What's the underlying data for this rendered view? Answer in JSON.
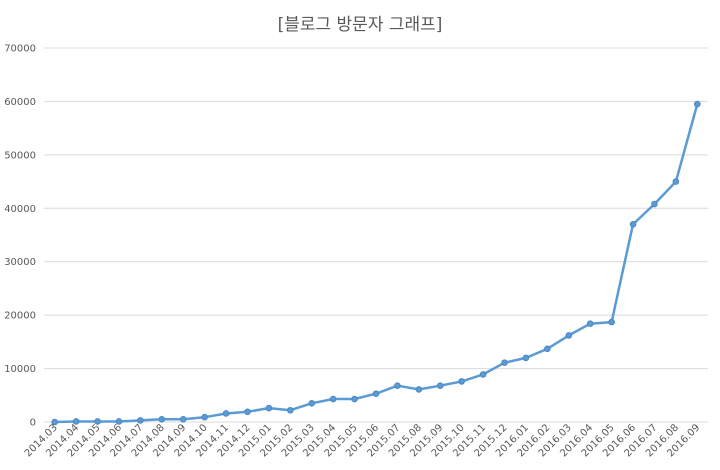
{
  "chart_data": {
    "type": "line",
    "title": "[블로그 방문자 그래프]",
    "xlabel": "",
    "ylabel": "",
    "ylim": [
      0,
      70000
    ],
    "yticks": [
      "0",
      "10000",
      "20000",
      "30000",
      "40000",
      "50000",
      "60000",
      "70000"
    ],
    "grid": true,
    "legend": "none",
    "colors": {
      "series": "#5b9bd5",
      "grid": "#d9d9d9",
      "text": "#595959"
    },
    "categories": [
      "2014.03",
      "2014.04",
      "2014.05",
      "2014.06",
      "2014.07",
      "2014.08",
      "2014.09",
      "2014.10",
      "2014.11",
      "2014.12",
      "2015.01",
      "2015.02",
      "2015.03",
      "2015.04",
      "2015.05",
      "2015.06",
      "2015.07",
      "2015.08",
      "2015.09",
      "2015.10",
      "2015.11",
      "2015.12",
      "2016.01",
      "2016.02",
      "2016.03",
      "2016.04",
      "2016.05",
      "2016.06",
      "2016.07",
      "2016.08",
      "2016.09"
    ],
    "series": [
      {
        "values": [
          0,
          100,
          100,
          100,
          300,
          500,
          500,
          900,
          1600,
          1900,
          2600,
          2200,
          3500,
          4300,
          4300,
          5300,
          6800,
          6100,
          6800,
          7600,
          8900,
          11100,
          12000,
          13700,
          16200,
          18400,
          18700,
          37000,
          40800,
          45000,
          59500
        ]
      }
    ]
  }
}
